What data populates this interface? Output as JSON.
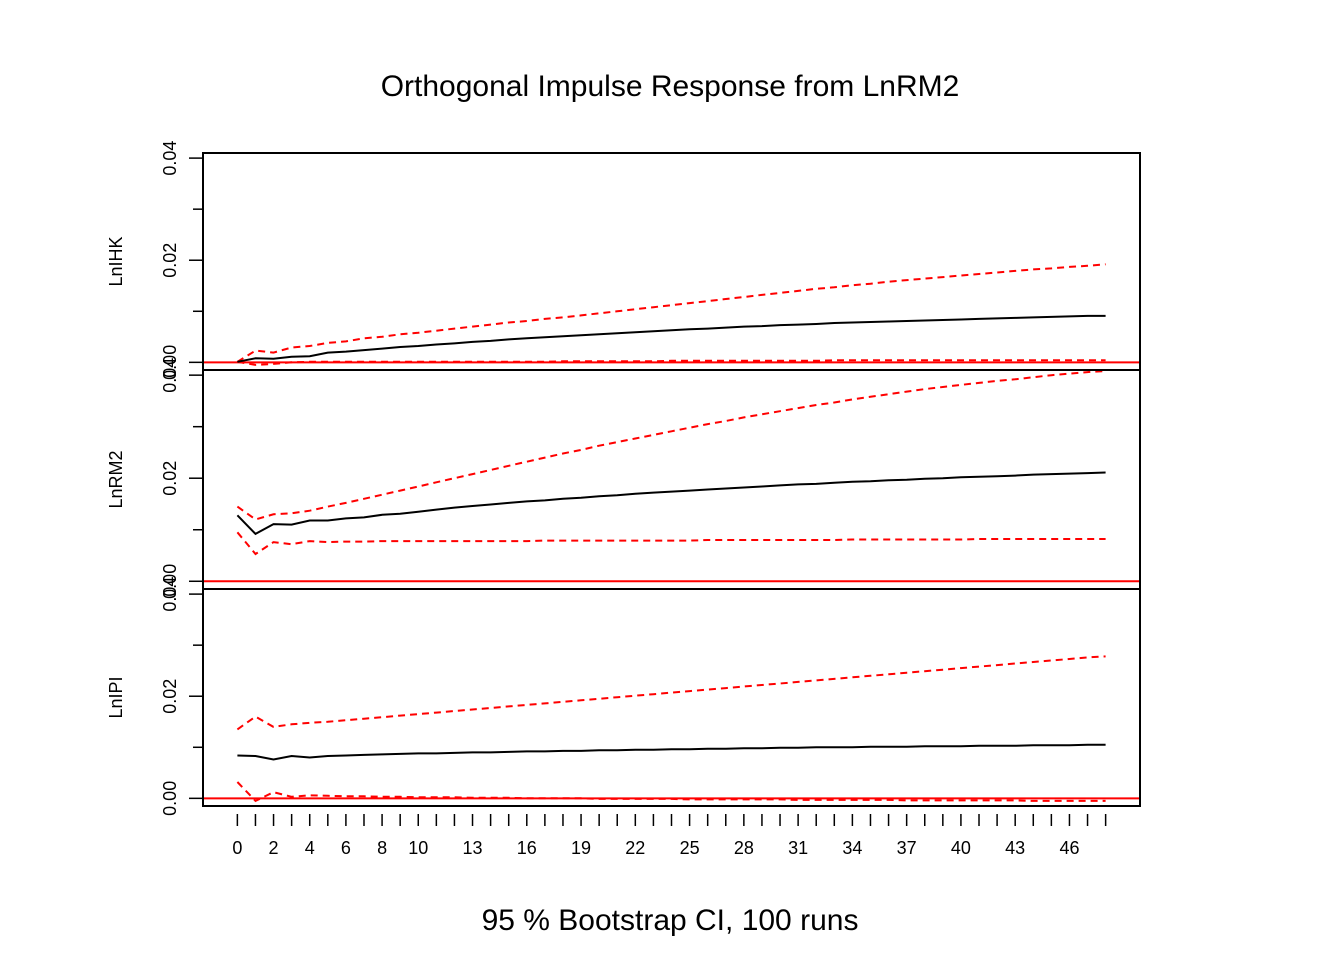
{
  "chart_data": {
    "type": "line",
    "title": "Orthogonal Impulse Response from LnRM2",
    "xlabel": "95 % Bootstrap CI,  100 runs",
    "x": [
      0,
      1,
      2,
      3,
      4,
      5,
      6,
      7,
      8,
      9,
      10,
      11,
      12,
      13,
      14,
      15,
      16,
      17,
      18,
      19,
      20,
      21,
      22,
      23,
      24,
      25,
      26,
      27,
      28,
      29,
      30,
      31,
      32,
      33,
      34,
      35,
      36,
      37,
      38,
      39,
      40,
      41,
      42,
      43,
      44,
      45,
      46,
      47,
      48
    ],
    "x_tick_labels": [
      "0",
      "2",
      "4",
      "6",
      "8",
      "10",
      "13",
      "16",
      "19",
      "22",
      "25",
      "28",
      "31",
      "34",
      "37",
      "40",
      "43",
      "46"
    ],
    "xlim": [
      -1.9,
      49.9
    ],
    "reference_line": 0,
    "grid": false,
    "legend": "none",
    "colors": {
      "response": "#000000",
      "ci_bounds": "#FF0000",
      "zero_line": "#FF0000",
      "frame": "#000000"
    },
    "panels": [
      {
        "ylabel": "LnIHK",
        "ylim": [
          -0.0015,
          0.041
        ],
        "y_ticks": [
          0,
          0.02,
          0.04
        ],
        "y_tick_labels": [
          "0.00",
          "0.02",
          "0.04"
        ],
        "response": [
          0.0001,
          0.0008,
          0.0007,
          0.0011,
          0.0012,
          0.0019,
          0.0021,
          0.0024,
          0.0027,
          0.003,
          0.0032,
          0.0035,
          0.0037,
          0.004,
          0.0042,
          0.0045,
          0.0047,
          0.0049,
          0.0051,
          0.0053,
          0.0055,
          0.0057,
          0.0059,
          0.0061,
          0.0063,
          0.0065,
          0.0066,
          0.0068,
          0.007,
          0.0071,
          0.0073,
          0.0074,
          0.0075,
          0.0077,
          0.0078,
          0.0079,
          0.008,
          0.0081,
          0.0082,
          0.0083,
          0.0084,
          0.0085,
          0.0086,
          0.0087,
          0.0088,
          0.0089,
          0.009,
          0.0091,
          0.0091
        ],
        "upper": [
          0.0001,
          0.0023,
          0.0019,
          0.0029,
          0.0032,
          0.0038,
          0.0041,
          0.0047,
          0.005,
          0.0055,
          0.0058,
          0.0062,
          0.0066,
          0.007,
          0.0074,
          0.0078,
          0.0081,
          0.0085,
          0.0088,
          0.0092,
          0.0096,
          0.01,
          0.0104,
          0.0108,
          0.0112,
          0.0116,
          0.012,
          0.0124,
          0.0128,
          0.0132,
          0.0136,
          0.014,
          0.0144,
          0.0147,
          0.0151,
          0.0154,
          0.0158,
          0.0161,
          0.0164,
          0.0167,
          0.017,
          0.0173,
          0.0176,
          0.0179,
          0.0182,
          0.0184,
          0.0187,
          0.0189,
          0.0192
        ],
        "lower": [
          0.0001,
          -0.0005,
          -0.0003,
          0.0,
          0.0001,
          0.0001,
          0.0001,
          0.0001,
          0.0001,
          0.0001,
          0.0001,
          0.0001,
          0.0001,
          0.0001,
          0.0001,
          0.0001,
          0.0001,
          0.0001,
          0.0002,
          0.0002,
          0.0002,
          0.0002,
          0.0002,
          0.0002,
          0.0003,
          0.0003,
          0.0003,
          0.0003,
          0.0003,
          0.0003,
          0.0003,
          0.0003,
          0.0003,
          0.0004,
          0.0004,
          0.0004,
          0.0004,
          0.0004,
          0.0004,
          0.0004,
          0.0004,
          0.0004,
          0.0004,
          0.0004,
          0.0004,
          0.0004,
          0.0004,
          0.0004,
          0.0004
        ]
      },
      {
        "ylabel": "LnRM2",
        "ylim": [
          -0.0015,
          0.041
        ],
        "y_ticks": [
          0,
          0.02,
          0.04
        ],
        "y_tick_labels": [
          "0.00",
          "0.02",
          "0.04"
        ],
        "response": [
          0.0128,
          0.0092,
          0.0111,
          0.011,
          0.0118,
          0.0118,
          0.0122,
          0.0124,
          0.0129,
          0.0131,
          0.0135,
          0.0139,
          0.0143,
          0.0146,
          0.0149,
          0.0152,
          0.0155,
          0.0157,
          0.016,
          0.0162,
          0.0165,
          0.0167,
          0.017,
          0.0172,
          0.0174,
          0.0176,
          0.0178,
          0.018,
          0.0182,
          0.0184,
          0.0186,
          0.0188,
          0.0189,
          0.0191,
          0.0193,
          0.0194,
          0.0196,
          0.0197,
          0.0199,
          0.02,
          0.0202,
          0.0203,
          0.0204,
          0.0205,
          0.0207,
          0.0208,
          0.0209,
          0.021,
          0.0211
        ],
        "upper": [
          0.0145,
          0.012,
          0.013,
          0.0132,
          0.0137,
          0.0145,
          0.0152,
          0.016,
          0.0168,
          0.0176,
          0.0184,
          0.0192,
          0.02,
          0.0208,
          0.0216,
          0.0224,
          0.0232,
          0.024,
          0.0248,
          0.0255,
          0.0263,
          0.027,
          0.0277,
          0.0284,
          0.0291,
          0.0298,
          0.0305,
          0.0311,
          0.0318,
          0.0324,
          0.033,
          0.0336,
          0.0342,
          0.0347,
          0.0353,
          0.0358,
          0.0363,
          0.0368,
          0.0373,
          0.0377,
          0.0381,
          0.0385,
          0.0389,
          0.0392,
          0.0396,
          0.04,
          0.0403,
          0.0406,
          0.0408
        ],
        "lower": [
          0.0095,
          0.0053,
          0.0076,
          0.0072,
          0.0078,
          0.0076,
          0.0077,
          0.0077,
          0.0078,
          0.0078,
          0.0078,
          0.0078,
          0.0078,
          0.0078,
          0.0078,
          0.0078,
          0.0078,
          0.0079,
          0.0079,
          0.0079,
          0.0079,
          0.0079,
          0.0079,
          0.0079,
          0.0079,
          0.0079,
          0.008,
          0.008,
          0.008,
          0.008,
          0.008,
          0.008,
          0.008,
          0.008,
          0.0081,
          0.0081,
          0.0081,
          0.0081,
          0.0081,
          0.0081,
          0.0081,
          0.0082,
          0.0082,
          0.0082,
          0.0082,
          0.0082,
          0.0082,
          0.0082,
          0.0082
        ]
      },
      {
        "ylabel": "LnIPI",
        "ylim": [
          -0.0015,
          0.041
        ],
        "y_ticks": [
          0,
          0.02,
          0.04
        ],
        "y_tick_labels": [
          "0.00",
          "0.02",
          "0.04"
        ],
        "response": [
          0.0084,
          0.0083,
          0.0076,
          0.0083,
          0.008,
          0.0083,
          0.0084,
          0.0085,
          0.0086,
          0.0087,
          0.0088,
          0.0088,
          0.0089,
          0.009,
          0.009,
          0.0091,
          0.0092,
          0.0092,
          0.0093,
          0.0093,
          0.0094,
          0.0094,
          0.0095,
          0.0095,
          0.0096,
          0.0096,
          0.0097,
          0.0097,
          0.0098,
          0.0098,
          0.0099,
          0.0099,
          0.01,
          0.01,
          0.01,
          0.0101,
          0.0101,
          0.0101,
          0.0102,
          0.0102,
          0.0102,
          0.0103,
          0.0103,
          0.0103,
          0.0104,
          0.0104,
          0.0104,
          0.0105,
          0.0105
        ],
        "upper": [
          0.0135,
          0.016,
          0.014,
          0.0145,
          0.0148,
          0.015,
          0.0153,
          0.0156,
          0.0159,
          0.0162,
          0.0165,
          0.0168,
          0.0171,
          0.0174,
          0.0177,
          0.018,
          0.0183,
          0.0186,
          0.0189,
          0.0192,
          0.0195,
          0.0198,
          0.0201,
          0.0204,
          0.0207,
          0.021,
          0.0213,
          0.0216,
          0.0219,
          0.0222,
          0.0225,
          0.0228,
          0.0231,
          0.0234,
          0.0237,
          0.024,
          0.0243,
          0.0246,
          0.0249,
          0.0252,
          0.0255,
          0.0258,
          0.0261,
          0.0264,
          0.0267,
          0.027,
          0.0273,
          0.0276,
          0.0278
        ],
        "lower": [
          0.0032,
          -0.0005,
          0.0012,
          0.0003,
          0.0006,
          0.0005,
          0.0004,
          0.0004,
          0.0003,
          0.0003,
          0.0002,
          0.0002,
          0.0002,
          0.0001,
          0.0001,
          0.0001,
          0.0,
          0.0,
          0.0,
          -0.0,
          -0.0001,
          -0.0001,
          -0.0001,
          -0.0001,
          -0.0001,
          -0.0002,
          -0.0002,
          -0.0002,
          -0.0002,
          -0.0002,
          -0.0002,
          -0.0003,
          -0.0003,
          -0.0003,
          -0.0003,
          -0.0003,
          -0.0003,
          -0.0004,
          -0.0004,
          -0.0004,
          -0.0004,
          -0.0004,
          -0.0004,
          -0.0004,
          -0.0005,
          -0.0005,
          -0.0005,
          -0.0005,
          -0.0005
        ]
      }
    ]
  }
}
